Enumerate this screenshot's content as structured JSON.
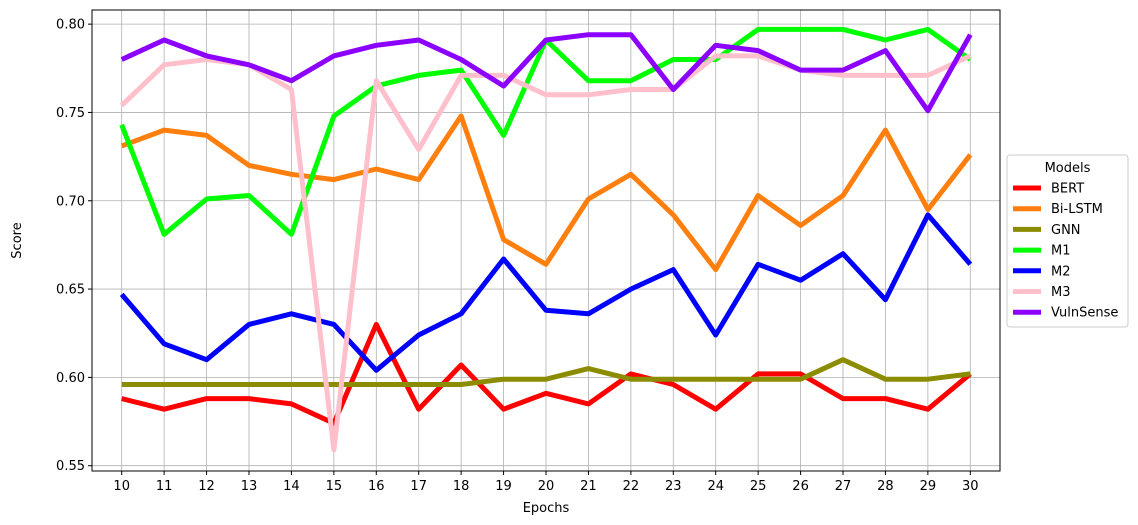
{
  "chart_data": {
    "type": "line",
    "title": "",
    "xlabel": "Epochs",
    "ylabel": "Score",
    "x": [
      10,
      11,
      12,
      13,
      14,
      15,
      16,
      17,
      18,
      19,
      20,
      21,
      22,
      23,
      24,
      25,
      26,
      27,
      28,
      29,
      30
    ],
    "xlim": [
      9.3,
      30.7
    ],
    "ylim": [
      0.547,
      0.808
    ],
    "yticks": [
      0.55,
      0.6,
      0.65,
      0.7,
      0.75,
      0.8
    ],
    "grid": true,
    "legend": {
      "title": "Models",
      "placement": "center-right, outside plot"
    },
    "series": [
      {
        "name": "BERT",
        "color": "#ff0000",
        "values": [
          0.588,
          0.582,
          0.588,
          0.588,
          0.585,
          0.574,
          0.63,
          0.582,
          0.607,
          0.582,
          0.591,
          0.585,
          0.602,
          0.596,
          0.582,
          0.602,
          0.602,
          0.588,
          0.588,
          0.582,
          0.602
        ]
      },
      {
        "name": "Bi-LSTM",
        "color": "#ff7f0e",
        "values": [
          0.731,
          0.74,
          0.737,
          0.72,
          0.715,
          0.712,
          0.718,
          0.712,
          0.748,
          0.678,
          0.664,
          0.701,
          0.715,
          0.692,
          0.661,
          0.703,
          0.686,
          0.703,
          0.74,
          0.695,
          0.726
        ]
      },
      {
        "name": "GNN",
        "color": "#8c8c00",
        "values": [
          0.596,
          0.596,
          0.596,
          0.596,
          0.596,
          0.596,
          0.596,
          0.596,
          0.596,
          0.599,
          0.599,
          0.605,
          0.599,
          0.599,
          0.599,
          0.599,
          0.599,
          0.61,
          0.599,
          0.599,
          0.602
        ]
      },
      {
        "name": "M1",
        "color": "#00ff00",
        "values": [
          0.743,
          0.681,
          0.701,
          0.703,
          0.681,
          0.748,
          0.765,
          0.771,
          0.774,
          0.737,
          0.791,
          0.768,
          0.768,
          0.78,
          0.78,
          0.797,
          0.797,
          0.797,
          0.791,
          0.797,
          0.78
        ]
      },
      {
        "name": "M2",
        "color": "#0000ff",
        "values": [
          0.647,
          0.619,
          0.61,
          0.63,
          0.636,
          0.63,
          0.604,
          0.624,
          0.636,
          0.667,
          0.638,
          0.636,
          0.65,
          0.661,
          0.624,
          0.664,
          0.655,
          0.67,
          0.644,
          0.692,
          0.664
        ]
      },
      {
        "name": "M3",
        "color": "#ffc0cb",
        "values": [
          0.754,
          0.777,
          0.78,
          0.777,
          0.763,
          0.559,
          0.768,
          0.729,
          0.771,
          0.771,
          0.76,
          0.76,
          0.763,
          0.763,
          0.782,
          0.782,
          0.774,
          0.771,
          0.771,
          0.771,
          0.782
        ]
      },
      {
        "name": "VulnSense",
        "color": "#8b00ff",
        "values": [
          0.78,
          0.791,
          0.782,
          0.777,
          0.768,
          0.782,
          0.788,
          0.791,
          0.78,
          0.765,
          0.791,
          0.794,
          0.794,
          0.763,
          0.788,
          0.785,
          0.774,
          0.774,
          0.785,
          0.751,
          0.794
        ]
      }
    ]
  }
}
